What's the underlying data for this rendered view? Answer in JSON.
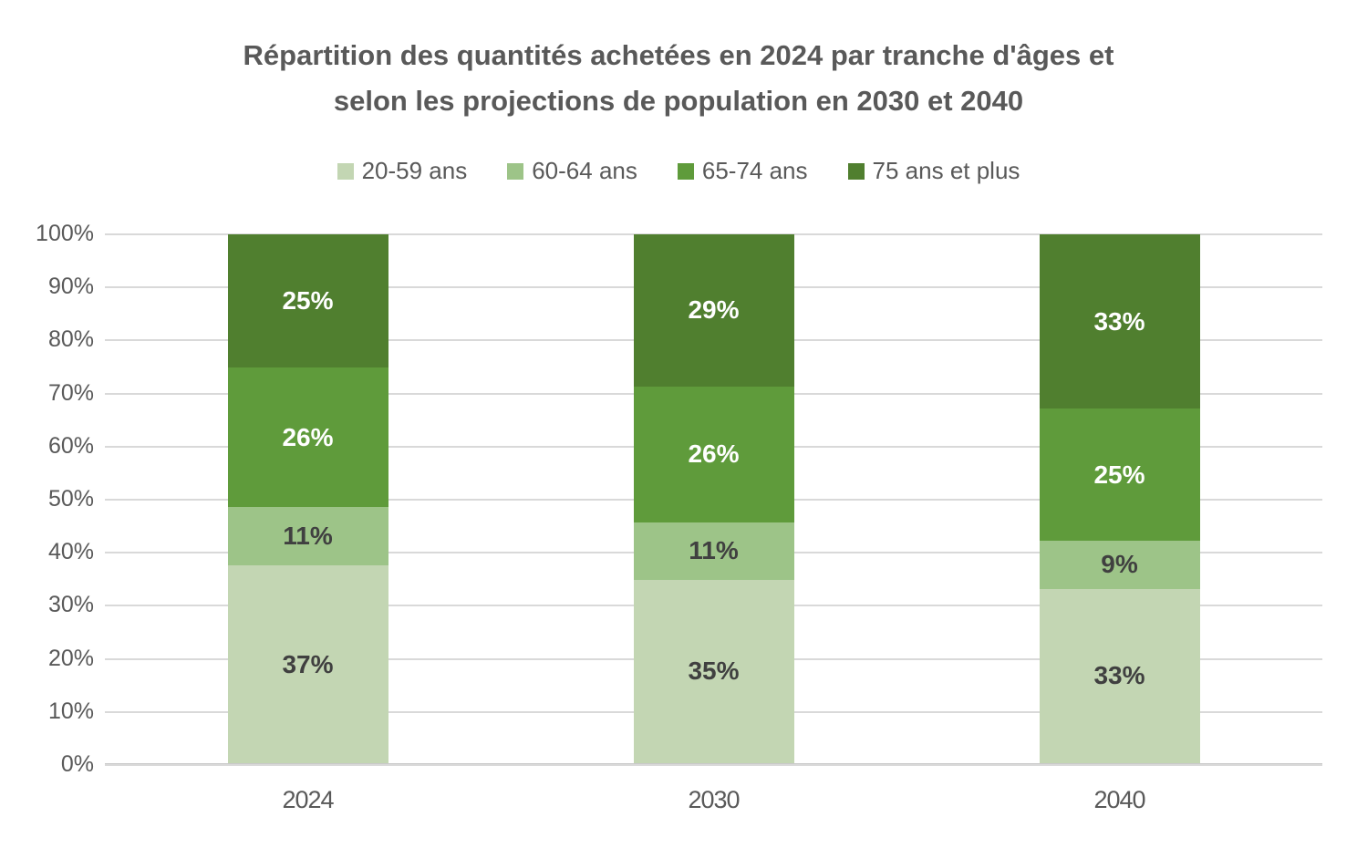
{
  "title": {
    "line1": "Répartition des quantités achetées en 2024 par tranche d'âges et",
    "line2": "selon les projections de population en 2030 et 2040"
  },
  "colors": {
    "title_text": "#595959",
    "axis_text": "#595959",
    "gridline": "#d9d9d9",
    "axis_line": "#c9c9c9",
    "background": "#ffffff",
    "label_on_light": "#404040",
    "label_on_dark": "#ffffff"
  },
  "chart_data": {
    "type": "bar",
    "stacked": true,
    "title": "Répartition des quantités achetées en 2024 par tranche d'âges et selon les projections de population en 2030 et 2040",
    "categories": [
      "2024",
      "2030",
      "2040"
    ],
    "series": [
      {
        "name": "20-59 ans",
        "color": "#c3d6b3",
        "values": [
          37,
          35,
          33
        ],
        "label_style": "dark"
      },
      {
        "name": "60-64 ans",
        "color": "#9dc488",
        "values": [
          11,
          11,
          9
        ],
        "label_style": "dark"
      },
      {
        "name": "65-74 ans",
        "color": "#5f9b3b",
        "values": [
          26,
          26,
          25
        ],
        "label_style": "light"
      },
      {
        "name": "75 ans et plus",
        "color": "#507f2f",
        "values": [
          25,
          29,
          33
        ],
        "label_style": "light"
      }
    ],
    "data_labels": {
      "2024": [
        "37%",
        "11%",
        "26%",
        "25%"
      ],
      "2030": [
        "35%",
        "11%",
        "26%",
        "29%"
      ],
      "2040": [
        "33%",
        "9%",
        "25%",
        "33%"
      ]
    },
    "y_ticks": [
      "0%",
      "10%",
      "20%",
      "30%",
      "40%",
      "50%",
      "60%",
      "70%",
      "80%",
      "90%",
      "100%"
    ],
    "ylim": [
      0,
      100
    ],
    "grid": true,
    "legend_position": "top",
    "xlabel": "",
    "ylabel": ""
  }
}
